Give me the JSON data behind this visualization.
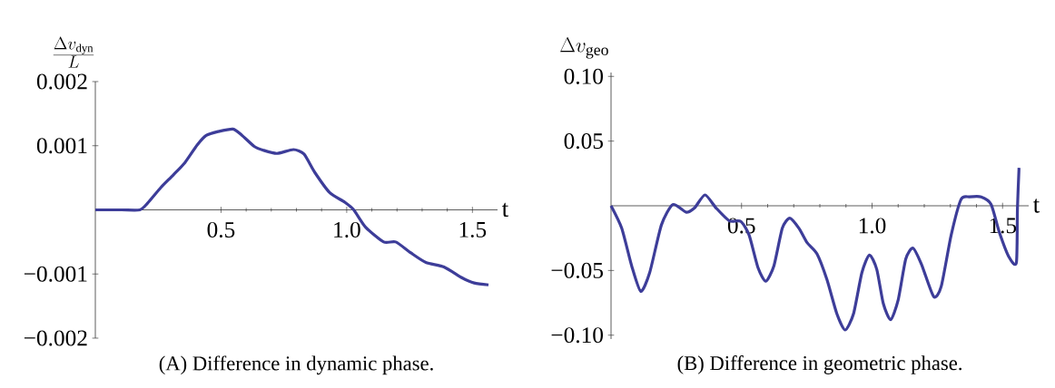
{
  "chart_data": [
    {
      "type": "line",
      "title": "(A) Difference in dynamic phase.",
      "xlabel": "t",
      "ylabel": "\\frac{\\Delta v_{\\mathrm{dyn}}}{L}",
      "x": [
        0,
        0.105,
        0.177,
        0.207,
        0.261,
        0.309,
        0.357,
        0.405,
        0.441,
        0.488,
        0.548,
        0.584,
        0.632,
        0.668,
        0.722,
        0.788,
        0.83,
        0.872,
        0.932,
        0.992,
        1.028,
        1.075,
        1.147,
        1.195,
        1.255,
        1.315,
        1.387,
        1.459,
        1.507,
        1.564
      ],
      "series": [
        {
          "color": "#3d3d99",
          "values": [
            0,
            0,
            0,
            0.0001,
            0.00035,
            0.00054,
            0.00074,
            0.00101,
            0.00116,
            0.00122,
            0.00126,
            0.00116,
            0.00099,
            0.00093,
            0.00088,
            0.00094,
            0.00087,
            0.00059,
            0.00027,
            0.00012,
            0,
            -0.00027,
            -0.0005,
            -0.0005,
            -0.00067,
            -0.00082,
            -0.00089,
            -0.00106,
            -0.00114,
            -0.00117
          ]
        }
      ],
      "xlim": [
        0,
        1.6
      ],
      "ylim": [
        -0.002,
        0.002
      ],
      "xticks": [
        {
          "value": 0.5,
          "label": "0.5"
        },
        {
          "value": 1.0,
          "label": "1.0"
        },
        {
          "value": 1.5,
          "label": "1.5"
        }
      ],
      "yticks": [
        {
          "value": -0.002,
          "label": "−0.002"
        },
        {
          "value": -0.001,
          "label": "−0.001"
        },
        0.001,
        0.002
      ],
      "grid": false,
      "marker": "none",
      "line_style": "solid"
    },
    {
      "type": "line",
      "title": "(B) Difference in geometric phase.",
      "xlabel": "t",
      "ylabel": "\\Delta v_{\\mathrm{geo}}",
      "x": [
        0,
        0.041,
        0.079,
        0.114,
        0.148,
        0.193,
        0.237,
        0.288,
        0.32,
        0.36,
        0.402,
        0.453,
        0.497,
        0.529,
        0.563,
        0.593,
        0.624,
        0.656,
        0.685,
        0.72,
        0.751,
        0.789,
        0.827,
        0.865,
        0.897,
        0.929,
        0.961,
        0.99,
        1.018,
        1.043,
        1.071,
        1.1,
        1.129,
        1.157,
        1.189,
        1.236,
        1.265,
        1.303,
        1.341,
        1.373,
        1.418,
        1.456,
        1.487,
        1.525,
        1.553,
        1.557,
        1.563
      ],
      "series": [
        {
          "color": "#3d3d99",
          "values": [
            0,
            -0.0174,
            -0.0464,
            -0.0662,
            -0.0517,
            -0.0148,
            0.001,
            -0.005,
            -0.0016,
            0.0084,
            -0.0016,
            -0.0116,
            -0.0121,
            -0.0227,
            -0.0478,
            -0.0583,
            -0.0464,
            -0.0174,
            -0.0095,
            -0.0174,
            -0.0285,
            -0.0372,
            -0.057,
            -0.0834,
            -0.096,
            -0.0834,
            -0.0517,
            -0.038,
            -0.0491,
            -0.0755,
            -0.0881,
            -0.0728,
            -0.0412,
            -0.0327,
            -0.0451,
            -0.0702,
            -0.0623,
            -0.0227,
            0.005,
            0.0069,
            0.0069,
            0.0011,
            -0.0201,
            -0.0398,
            -0.0438,
            -0.0016,
            0.0293
          ]
        }
      ],
      "xlim": [
        0,
        1.6
      ],
      "ylim": [
        -0.103,
        0.103
      ],
      "xticks": [
        {
          "value": 0.5,
          "label": "0.5"
        },
        {
          "value": 1.0,
          "label": "1.0"
        },
        {
          "value": 1.5,
          "label": "1.5"
        }
      ],
      "yticks": [
        {
          "value": -0.1,
          "label": "−0.10"
        },
        {
          "value": -0.05,
          "label": "−0.05"
        },
        0.05,
        {
          "value": 0.1,
          "label": "0.10"
        }
      ],
      "grid": false,
      "marker": "none",
      "line_style": "solid"
    }
  ]
}
